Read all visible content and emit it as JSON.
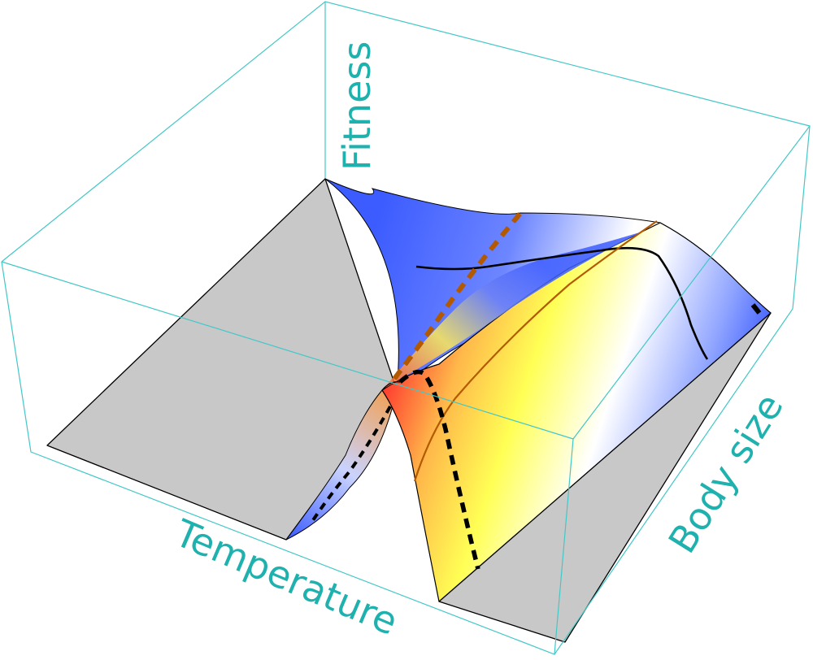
{
  "axes": {
    "z_label": "Fitness",
    "x_label": "Temperature",
    "y_label": "Body size"
  },
  "colors": {
    "axis_label": "#1fb1ad",
    "box_edge": "#43c7c7",
    "base_plane": "#c8c8c8",
    "surface_high": "#ff3b2f",
    "surface_mid": "#ffff4d",
    "surface_neutral": "#ffffff",
    "surface_low": "#3c5cff",
    "orange_curve": "#b35a00",
    "black_curve": "#000000"
  },
  "legend": "none",
  "grid": false
}
